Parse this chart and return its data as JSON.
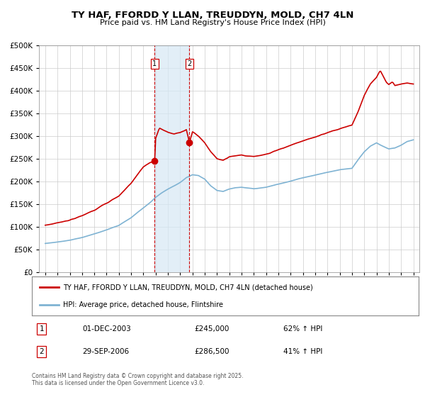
{
  "title": "TY HAF, FFORDD Y LLAN, TREUDDYN, MOLD, CH7 4LN",
  "subtitle": "Price paid vs. HM Land Registry's House Price Index (HPI)",
  "legend_line1": "TY HAF, FFORDD Y LLAN, TREUDDYN, MOLD, CH7 4LN (detached house)",
  "legend_line2": "HPI: Average price, detached house, Flintshire",
  "footer1": "Contains HM Land Registry data © Crown copyright and database right 2025.",
  "footer2": "This data is licensed under the Open Government Licence v3.0.",
  "transaction1_label": "1",
  "transaction1_date": "01-DEC-2003",
  "transaction1_price": "£245,000",
  "transaction1_hpi": "62% ↑ HPI",
  "transaction2_label": "2",
  "transaction2_date": "29-SEP-2006",
  "transaction2_price": "£286,500",
  "transaction2_hpi": "41% ↑ HPI",
  "hpi_color": "#7fb3d3",
  "price_color": "#cc0000",
  "marker_color": "#cc0000",
  "shade_color": "#d6e8f5",
  "grid_color": "#cccccc",
  "bg_color": "#f5f5f5",
  "ylim": [
    0,
    500000
  ],
  "yticks": [
    0,
    50000,
    100000,
    150000,
    200000,
    250000,
    300000,
    350000,
    400000,
    450000,
    500000
  ],
  "transaction1_x": 2003.917,
  "transaction1_y": 245000,
  "transaction2_x": 2006.75,
  "transaction2_y": 286500,
  "vline1_x": 2003.917,
  "vline2_x": 2006.75,
  "xlim_left": 1994.5,
  "xlim_right": 2025.5,
  "years_hpi": [
    1995.0,
    1995.08,
    1995.17,
    1995.25,
    1995.33,
    1995.42,
    1995.5,
    1995.58,
    1995.67,
    1995.75,
    1995.83,
    1995.92,
    1996.0,
    1996.08,
    1996.17,
    1996.25,
    1996.33,
    1996.42,
    1996.5,
    1996.58,
    1996.67,
    1996.75,
    1996.83,
    1996.92,
    1997.0,
    1997.08,
    1997.17,
    1997.25,
    1997.33,
    1997.42,
    1997.5,
    1997.58,
    1997.67,
    1997.75,
    1997.83,
    1997.92,
    1998.0,
    1998.08,
    1998.17,
    1998.25,
    1998.33,
    1998.42,
    1998.5,
    1998.58,
    1998.67,
    1998.75,
    1998.83,
    1998.92,
    1999.0,
    1999.08,
    1999.17,
    1999.25,
    1999.33,
    1999.42,
    1999.5,
    1999.58,
    1999.67,
    1999.75,
    1999.83,
    1999.92,
    2000.0,
    2000.08,
    2000.17,
    2000.25,
    2000.33,
    2000.42,
    2000.5,
    2000.58,
    2000.67,
    2000.75,
    2000.83,
    2000.92,
    2001.0,
    2001.08,
    2001.17,
    2001.25,
    2001.33,
    2001.42,
    2001.5,
    2001.58,
    2001.67,
    2001.75,
    2001.83,
    2001.92,
    2002.0,
    2002.08,
    2002.17,
    2002.25,
    2002.33,
    2002.42,
    2002.5,
    2002.58,
    2002.67,
    2002.75,
    2002.83,
    2002.92,
    2003.0,
    2003.08,
    2003.17,
    2003.25,
    2003.33,
    2003.42,
    2003.5,
    2003.58,
    2003.67,
    2003.75,
    2003.83,
    2003.92,
    2004.0,
    2004.08,
    2004.17,
    2004.25,
    2004.33,
    2004.42,
    2004.5,
    2004.58,
    2004.67,
    2004.75,
    2004.83,
    2004.92,
    2005.0,
    2005.08,
    2005.17,
    2005.25,
    2005.33,
    2005.42,
    2005.5,
    2005.58,
    2005.67,
    2005.75,
    2005.83,
    2005.92,
    2006.0,
    2006.08,
    2006.17,
    2006.25,
    2006.33,
    2006.42,
    2006.5,
    2006.58,
    2006.67,
    2006.75,
    2006.83,
    2006.92,
    2007.0,
    2007.08,
    2007.17,
    2007.25,
    2007.33,
    2007.42,
    2007.5,
    2007.58,
    2007.67,
    2007.75,
    2007.83,
    2007.92,
    2008.0,
    2008.08,
    2008.17,
    2008.25,
    2008.33,
    2008.42,
    2008.5,
    2008.58,
    2008.67,
    2008.75,
    2008.83,
    2008.92,
    2009.0,
    2009.08,
    2009.17,
    2009.25,
    2009.33,
    2009.42,
    2009.5,
    2009.58,
    2009.67,
    2009.75,
    2009.83,
    2009.92,
    2010.0,
    2010.08,
    2010.17,
    2010.25,
    2010.33,
    2010.42,
    2010.5,
    2010.58,
    2010.67,
    2010.75,
    2010.83,
    2010.92,
    2011.0,
    2011.08,
    2011.17,
    2011.25,
    2011.33,
    2011.42,
    2011.5,
    2011.58,
    2011.67,
    2011.75,
    2011.83,
    2011.92,
    2012.0,
    2012.08,
    2012.17,
    2012.25,
    2012.33,
    2012.42,
    2012.5,
    2012.58,
    2012.67,
    2012.75,
    2012.83,
    2012.92,
    2013.0,
    2013.08,
    2013.17,
    2013.25,
    2013.33,
    2013.42,
    2013.5,
    2013.58,
    2013.67,
    2013.75,
    2013.83,
    2013.92,
    2014.0,
    2014.08,
    2014.17,
    2014.25,
    2014.33,
    2014.42,
    2014.5,
    2014.58,
    2014.67,
    2014.75,
    2014.83,
    2014.92,
    2015.0,
    2015.08,
    2015.17,
    2015.25,
    2015.33,
    2015.42,
    2015.5,
    2015.58,
    2015.67,
    2015.75,
    2015.83,
    2015.92,
    2016.0,
    2016.08,
    2016.17,
    2016.25,
    2016.33,
    2016.42,
    2016.5,
    2016.58,
    2016.67,
    2016.75,
    2016.83,
    2016.92,
    2017.0,
    2017.08,
    2017.17,
    2017.25,
    2017.33,
    2017.42,
    2017.5,
    2017.58,
    2017.67,
    2017.75,
    2017.83,
    2017.92,
    2018.0,
    2018.08,
    2018.17,
    2018.25,
    2018.33,
    2018.42,
    2018.5,
    2018.58,
    2018.67,
    2018.75,
    2018.83,
    2018.92,
    2019.0,
    2019.08,
    2019.17,
    2019.25,
    2019.33,
    2019.42,
    2019.5,
    2019.58,
    2019.67,
    2019.75,
    2019.83,
    2019.92,
    2020.0,
    2020.08,
    2020.17,
    2020.25,
    2020.33,
    2020.42,
    2020.5,
    2020.58,
    2020.67,
    2020.75,
    2020.83,
    2020.92,
    2021.0,
    2021.08,
    2021.17,
    2021.25,
    2021.33,
    2021.42,
    2021.5,
    2021.58,
    2021.67,
    2021.75,
    2021.83,
    2021.92,
    2022.0,
    2022.08,
    2022.17,
    2022.25,
    2022.33,
    2022.42,
    2022.5,
    2022.58,
    2022.67,
    2022.75,
    2022.83,
    2022.92,
    2023.0,
    2023.08,
    2023.17,
    2023.25,
    2023.33,
    2023.42,
    2023.5,
    2023.58,
    2023.67,
    2023.75,
    2023.83,
    2023.92,
    2024.0,
    2024.08,
    2024.17,
    2024.25,
    2024.33,
    2024.42,
    2024.5,
    2024.58,
    2024.67,
    2024.75,
    2024.83,
    2024.92,
    2025.0
  ]
}
